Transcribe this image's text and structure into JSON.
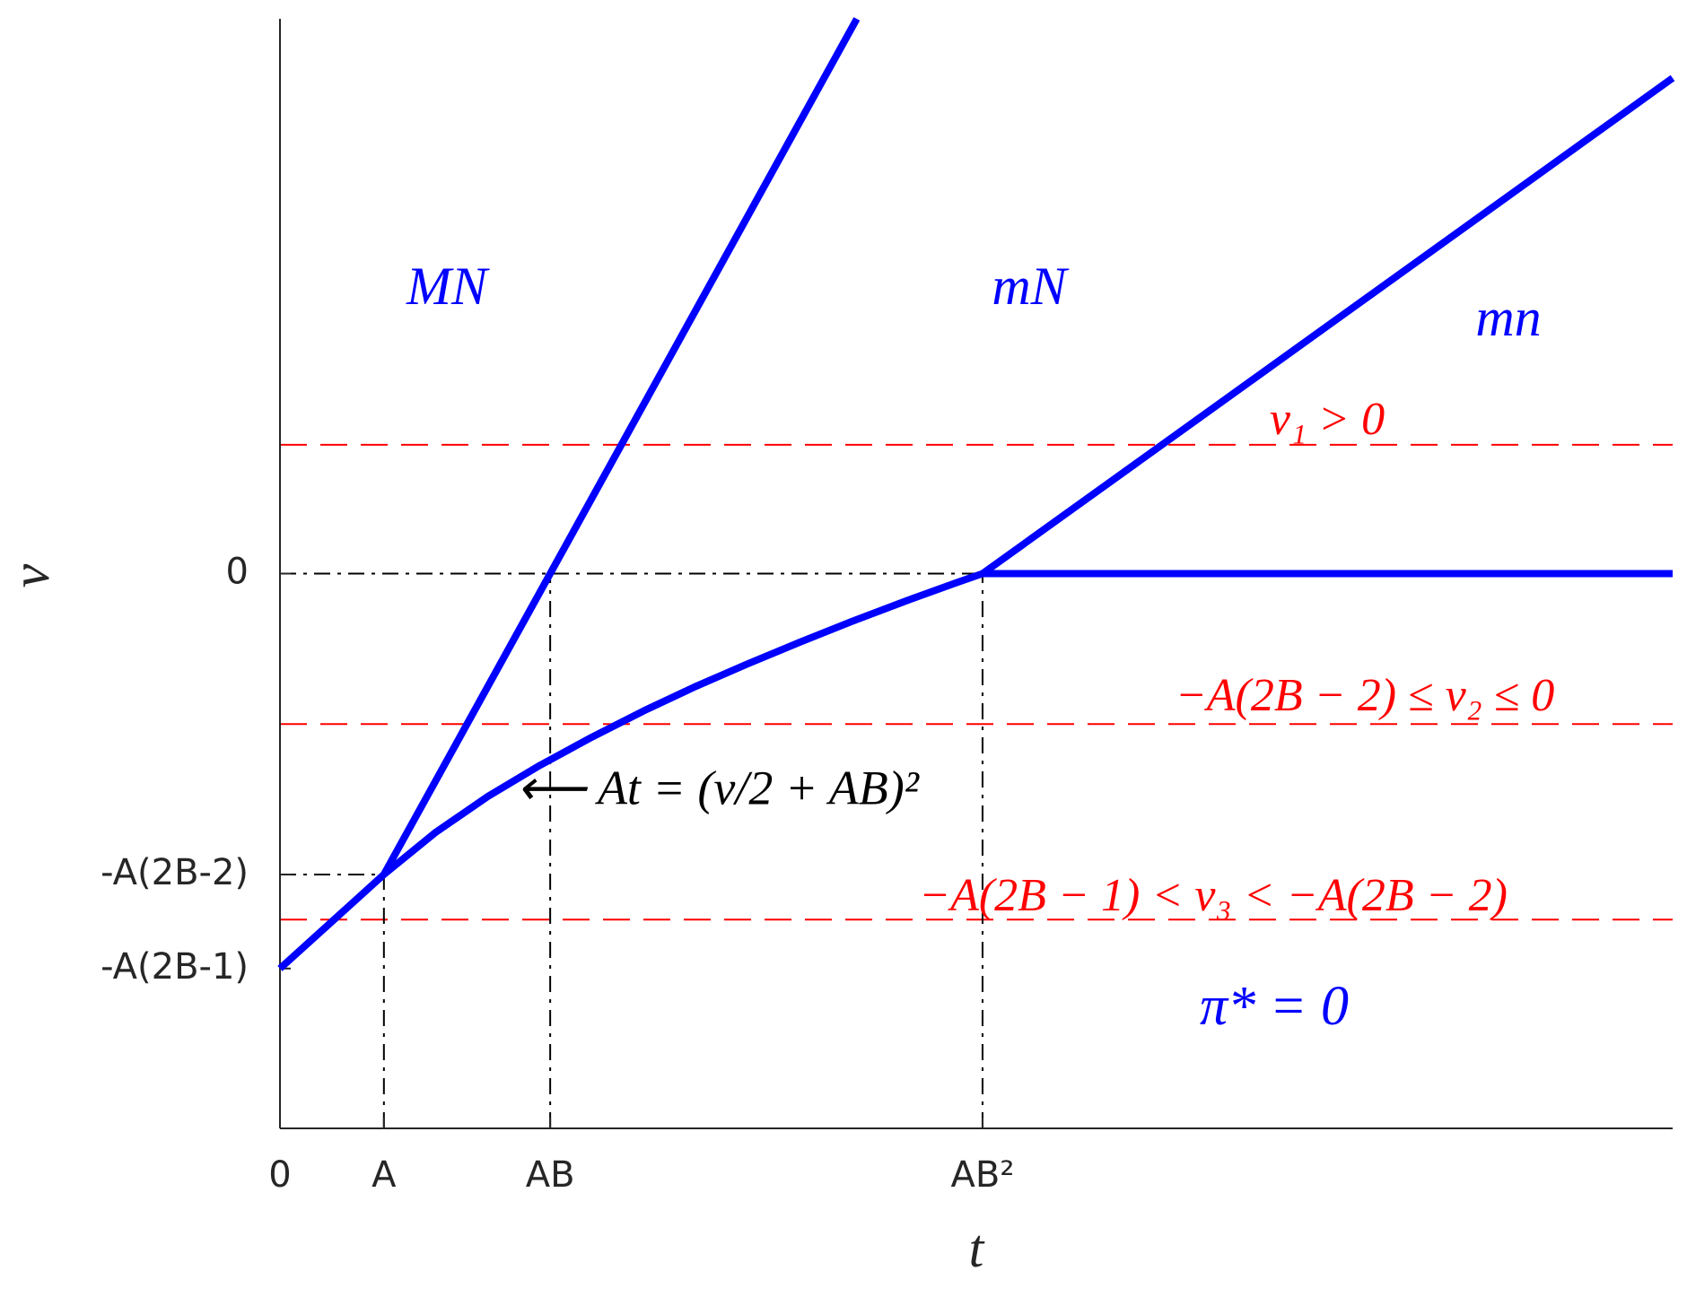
{
  "chart_data": {
    "type": "line",
    "xlabel": "t",
    "ylabel": "v",
    "xlim": [
      0,
      13.4
    ],
    "ylim": [
      -5.9,
      5.9
    ],
    "xticks": [
      {
        "value": 0,
        "label": "0"
      },
      {
        "value": 1,
        "label": "A"
      },
      {
        "value": 2.6,
        "label": "AB"
      },
      {
        "value": 6.76,
        "label": "AB²"
      }
    ],
    "yticks": [
      {
        "value": 0,
        "label": "0"
      },
      {
        "value": -3.2,
        "label": "-A(2B-2)"
      },
      {
        "value": -4.2,
        "label": "-A(2B-1)"
      }
    ],
    "series": [
      {
        "color": "#0000ff",
        "x": [
          1,
          5.55
        ],
        "values": [
          -3.2,
          5.9
        ]
      },
      {
        "color": "#0000ff",
        "x": [
          0,
          1,
          1.5,
          2,
          2.5,
          3,
          3.5,
          4,
          4.5,
          5,
          5.5,
          6,
          6.5,
          6.76,
          13.4
        ],
        "values": [
          -4.2,
          -3.2,
          -2.75,
          -2.37,
          -2.04,
          -1.74,
          -1.46,
          -1.2,
          -0.96,
          -0.73,
          -0.51,
          -0.3,
          -0.1,
          0,
          0
        ]
      },
      {
        "color": "#0000ff",
        "x": [
          6.76,
          13.4
        ],
        "values": [
          0,
          5.27
        ]
      }
    ],
    "hlines": [
      {
        "value": 1.37,
        "color": "#ff0000"
      },
      {
        "value": -1.6,
        "color": "#ff0000"
      },
      {
        "value": -3.68,
        "color": "#ff0000"
      }
    ],
    "annotations": [
      {
        "text": "MN",
        "color": "#0000ff"
      },
      {
        "text": "mN",
        "color": "#0000ff"
      },
      {
        "text": "mn",
        "color": "#0000ff"
      },
      {
        "text": "v₁ > 0",
        "color": "#ff0000"
      },
      {
        "text": "−A(2B − 2) ≤ v₂ ≤ 0",
        "color": "#ff0000"
      },
      {
        "text": "−A(2B − 1) < v₃ < −A(2B − 2)",
        "color": "#ff0000"
      },
      {
        "text": "π* = 0",
        "color": "#0000ff"
      },
      {
        "text": "⟵ At = (v/2 + AB)²",
        "color": "#000000"
      }
    ]
  }
}
